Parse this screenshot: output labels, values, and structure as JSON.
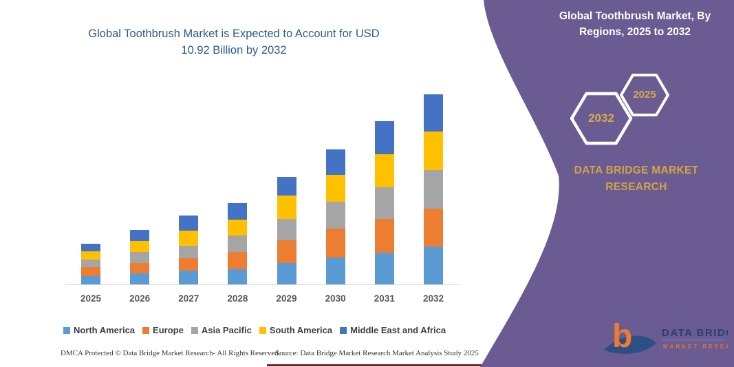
{
  "left_panel": {
    "title_line1": "Global Toothbrush Market is Expected to Account for USD",
    "title_line2": "10.92 Billion by 2032",
    "title_color": "#2E5B8F",
    "footer_dmca": "DMCA Protected © Data Bridge Market Research-  All Rights Reserved.",
    "footer_source": "Source: Data Bridge Market Research  Market Analysis Study 2025"
  },
  "chart_data": {
    "type": "bar",
    "stacked": true,
    "title": "Global Toothbrush Market is Expected to Account for USD 10.92 Billion by 2032",
    "unit": "USD Billion",
    "categories": [
      "2025",
      "2026",
      "2027",
      "2028",
      "2029",
      "2030",
      "2031",
      "2032"
    ],
    "series": [
      {
        "name": "North America",
        "color": "#5B9BD5",
        "values": [
          0.47,
          0.63,
          0.79,
          0.87,
          1.23,
          1.54,
          1.82,
          2.18
        ]
      },
      {
        "name": "Europe",
        "color": "#ED7D31",
        "values": [
          0.51,
          0.59,
          0.71,
          0.99,
          1.31,
          1.66,
          1.94,
          2.18
        ]
      },
      {
        "name": "Asia Pacific",
        "color": "#A5A5A5",
        "values": [
          0.44,
          0.63,
          0.71,
          0.95,
          1.23,
          1.54,
          1.82,
          2.22
        ]
      },
      {
        "name": "South America",
        "color": "#FFC000",
        "values": [
          0.47,
          0.63,
          0.87,
          0.91,
          1.35,
          1.54,
          1.9,
          2.22
        ]
      },
      {
        "name": "Middle East and Africa",
        "color": "#4472C4",
        "values": [
          0.44,
          0.67,
          0.87,
          0.95,
          1.07,
          1.5,
          1.9,
          2.12
        ]
      }
    ],
    "totals_by_year": [
      2.33,
      3.15,
      3.95,
      4.67,
      6.19,
      7.78,
      9.38,
      10.92
    ],
    "ylim": [
      0,
      11.2
    ],
    "grid": false,
    "y_axis_visible": false,
    "legend_position": "bottom"
  },
  "right_panel": {
    "bg_color": "#6A5C93",
    "title_line1": "Global Toothbrush Market, By",
    "title_line2": "Regions, 2025 to 2032",
    "hexagons": [
      {
        "label": "2032"
      },
      {
        "label": "2025"
      }
    ],
    "hex_text_color": "#D8A94E",
    "brand_line1": "DATA BRIDGE MARKET",
    "brand_line2": "RESEARCH",
    "brand_color": "#D4A345",
    "logo": {
      "glyph": "b",
      "wordmark": "DATA BRIDGE",
      "tagline": "MARKET RESEARCH"
    }
  },
  "decor": {
    "bottom_line_color": "#7E1E26"
  }
}
